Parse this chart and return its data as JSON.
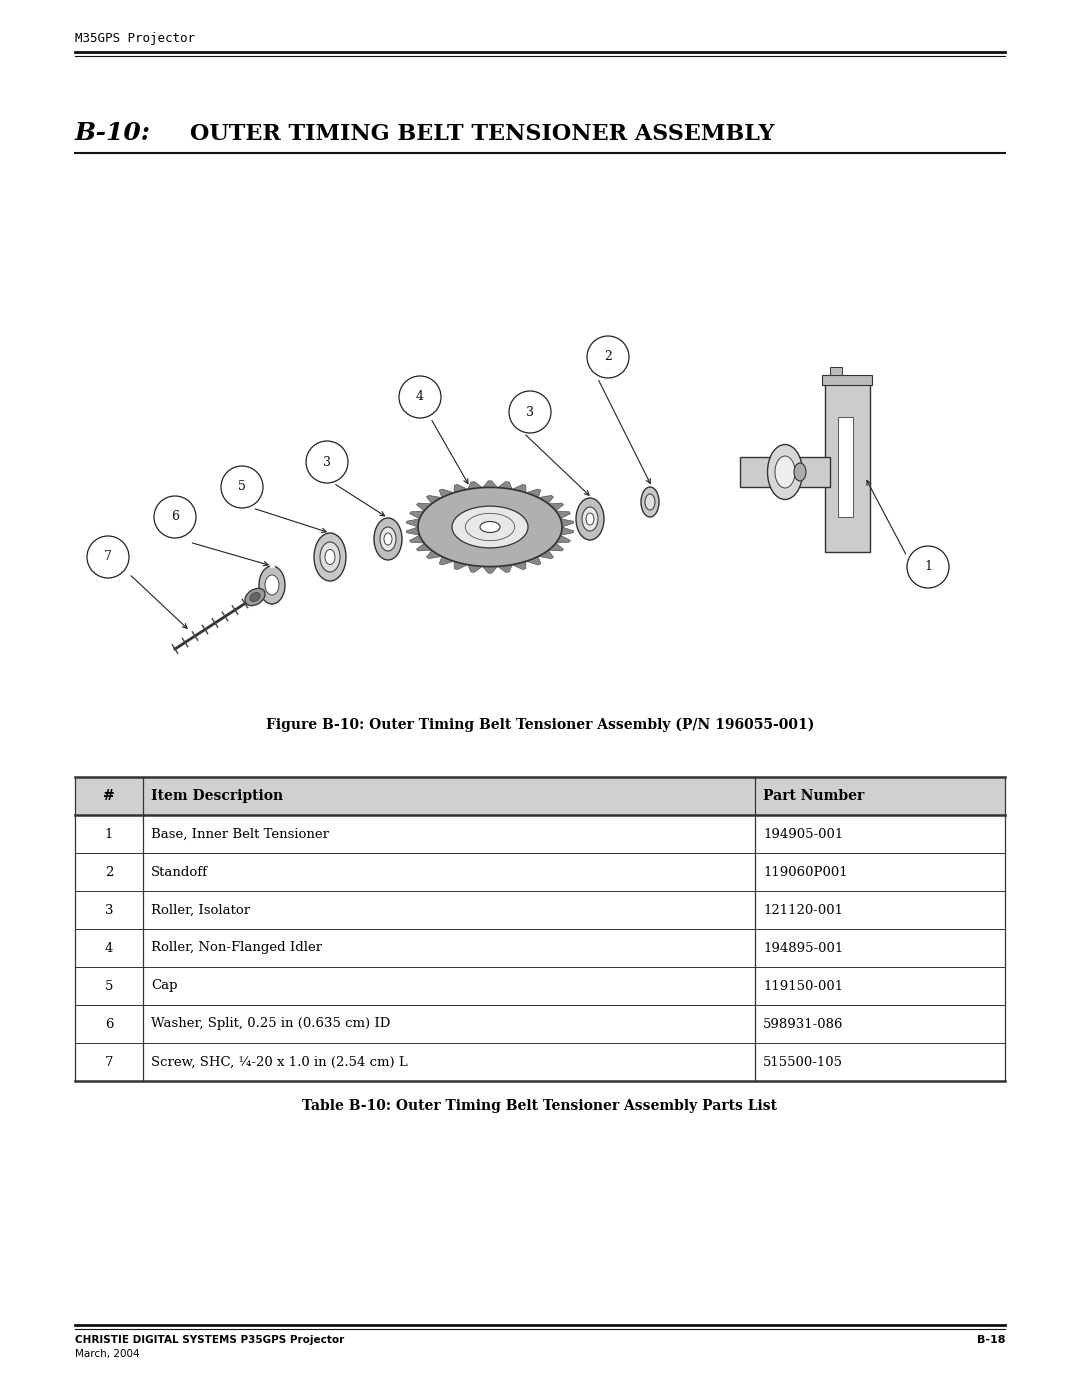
{
  "page_header": "M35GPS Projector",
  "section_title_bold": "B-10:",
  "section_title_rest": "OUTER TIMING BELT TENSIONER ASSEMBLY",
  "figure_caption": "Figure B-10: Outer Timing Belt Tensioner Assembly (P/N 196055-001)",
  "table_caption": "Table B-10: Outer Timing Belt Tensioner Assembly Parts List",
  "footer_left_line1": "CHRISTIE DIGITAL SYSTEMS P35GPS Projector",
  "footer_left_line2": "March, 2004",
  "footer_right": "B-18",
  "table_headers": [
    "#",
    "Item Description",
    "Part Number"
  ],
  "table_rows": [
    [
      "1",
      "Base, Inner Belt Tensioner",
      "194905-001"
    ],
    [
      "2",
      "Standoff",
      "119060P001"
    ],
    [
      "3",
      "Roller, Isolator",
      "121120-001"
    ],
    [
      "4",
      "Roller, Non-Flanged Idler",
      "194895-001"
    ],
    [
      "5",
      "Cap",
      "119150-001"
    ],
    [
      "6",
      "Washer, Split, 0.25 in (0.635 cm) ID",
      "598931-086"
    ],
    [
      "7",
      "Screw, SHC, ¼-20 x 1.0 in (2.54 cm) L",
      "515500-105"
    ]
  ],
  "bg_color": "#ffffff",
  "text_color": "#000000"
}
